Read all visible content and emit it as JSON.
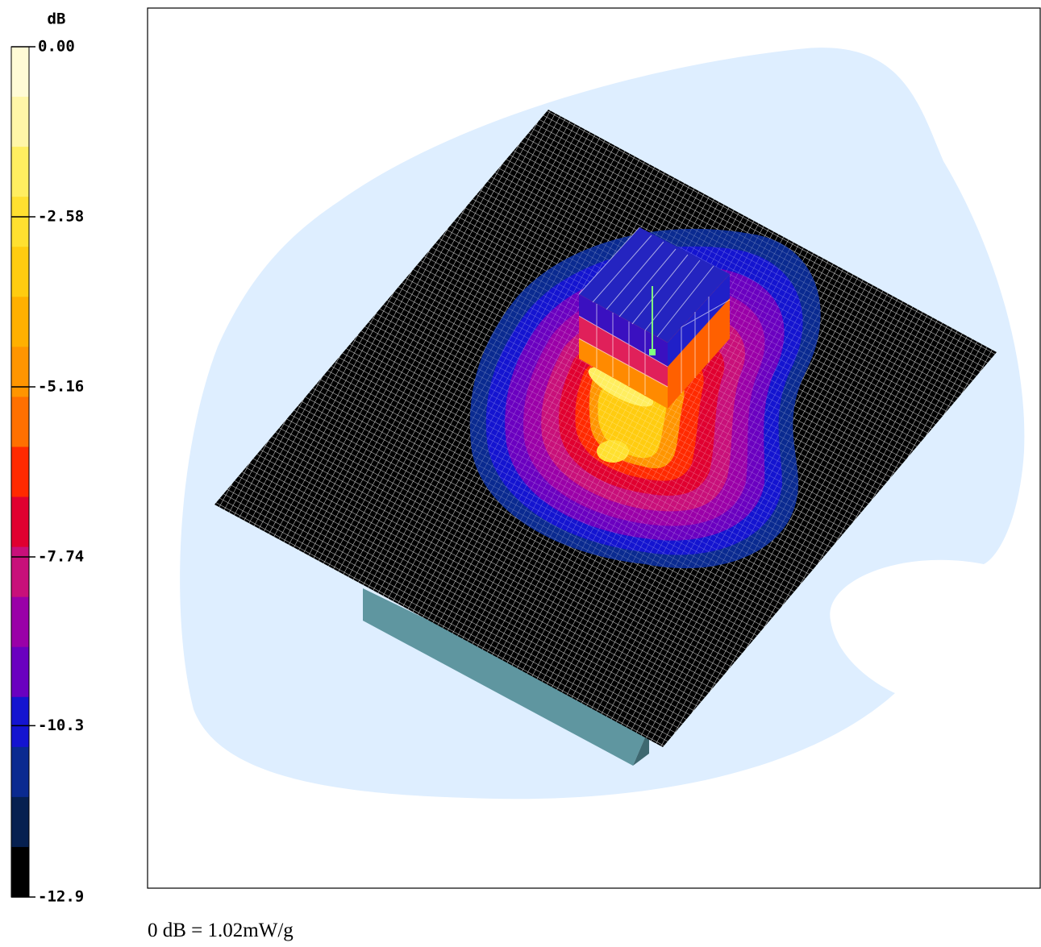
{
  "chart_data": {
    "type": "surface",
    "ylabel": "dB",
    "ylim": [
      -12.9,
      0
    ],
    "yticks": [
      {
        "value": 0,
        "label": "0.00"
      },
      -2.58,
      -5.16,
      -7.74,
      -10.3,
      -12.9
    ],
    "colormap": [
      "#fffbd6",
      "#fff6a8",
      "#ffee60",
      "#ffe030",
      "#ffcc10",
      "#ffb000",
      "#ff9500",
      "#ff7000",
      "#ff2a00",
      "#e00030",
      "#c8107a",
      "#9a00a8",
      "#6a00c0",
      "#1414d0",
      "#0a2a90",
      "#062050",
      "#000000"
    ],
    "annotation": "0 dB = 1.02mW/g"
  }
}
